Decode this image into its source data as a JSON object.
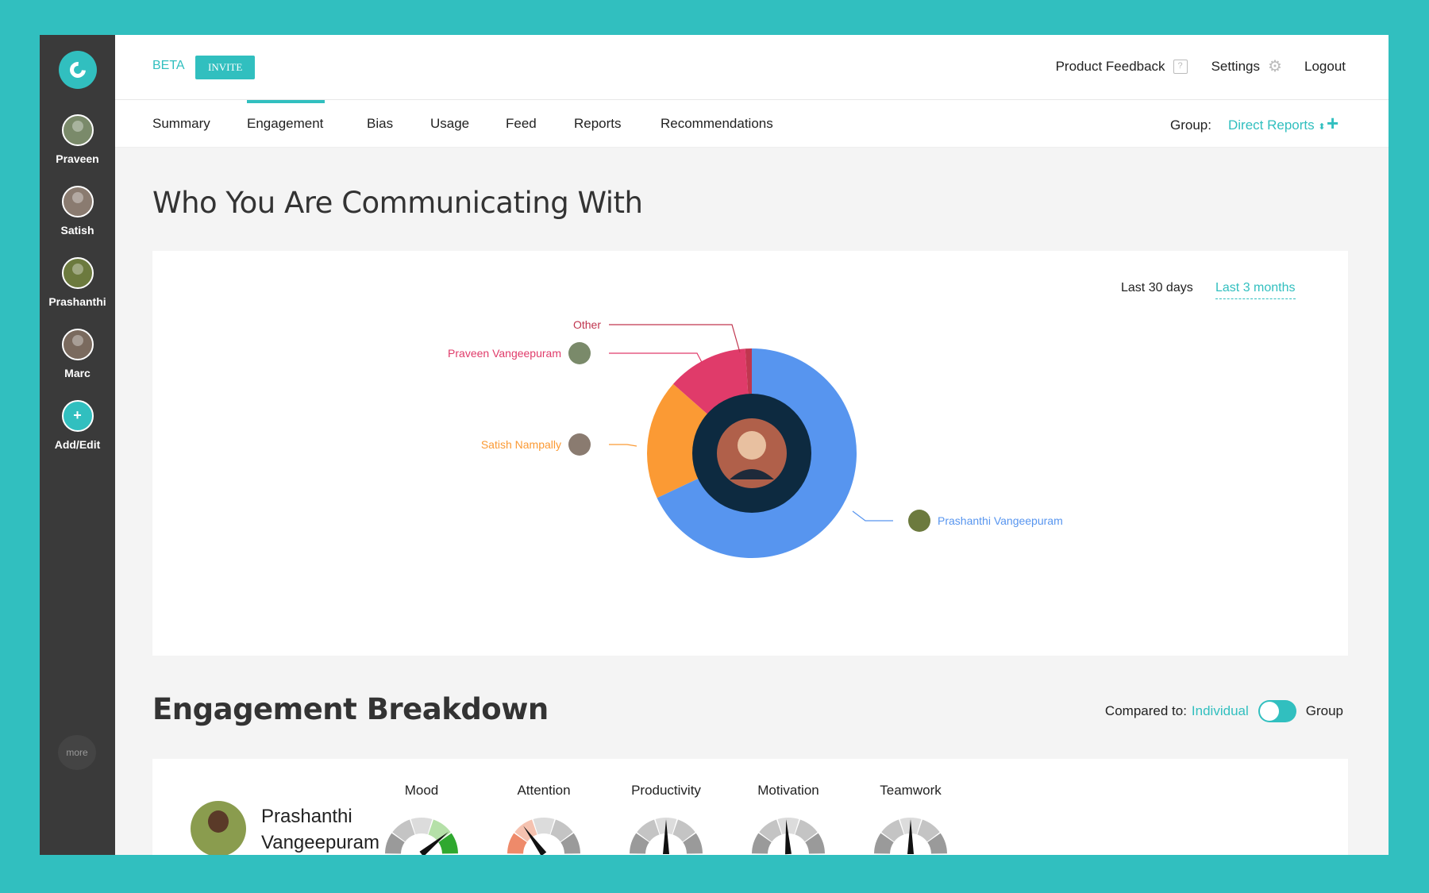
{
  "sidebar": {
    "users": [
      {
        "name": "Praveen",
        "color": "#7a8a6a"
      },
      {
        "name": "Satish",
        "color": "#8a7b70"
      },
      {
        "name": "Prashanthi",
        "color": "#6c7a3e"
      },
      {
        "name": "Marc",
        "color": "#7a6a5e"
      }
    ],
    "add_label": "Add/Edit",
    "more_label": "more"
  },
  "header": {
    "beta": "BETA",
    "invite": "INVITE",
    "product_feedback": "Product Feedback",
    "settings": "Settings",
    "logout": "Logout"
  },
  "tabs": {
    "items": [
      "Summary",
      "Engagement",
      "Bias",
      "Usage",
      "Feed",
      "Reports",
      "Recommendations"
    ],
    "active": "Engagement",
    "group_label": "Group:",
    "group_value": "Direct Reports"
  },
  "communicating": {
    "title": "Who You Are Communicating With",
    "range_30": "Last 30 days",
    "range_3m": "Last 3 months",
    "selected_range": "Last 3 months"
  },
  "chart_data": {
    "type": "pie",
    "labels": [
      "Prashanthi Vangeepuram",
      "Satish Nampally",
      "Praveen Vangeepuram",
      "Other"
    ],
    "values": [
      68,
      18.5,
      12.5,
      1
    ],
    "colors": [
      "#5795ef",
      "#fb9a34",
      "#e03b6a",
      "#c0364f"
    ],
    "donut": true
  },
  "breakdown": {
    "title": "Engagement Breakdown",
    "compared_to": "Compared to:",
    "individual": "Individual",
    "group": "Group",
    "person_line1": "Prashanthi",
    "person_line2": "Vangeepuram",
    "gauges": [
      {
        "label": "Mood",
        "level": 0.78
      },
      {
        "label": "Attention",
        "level": 0.3
      },
      {
        "label": "Productivity",
        "level": 0.5
      },
      {
        "label": "Motivation",
        "level": 0.48
      },
      {
        "label": "Teamwork",
        "level": 0.5
      }
    ]
  },
  "colors": {
    "accent": "#31bfbf",
    "sidebar": "#3a3a3a"
  }
}
